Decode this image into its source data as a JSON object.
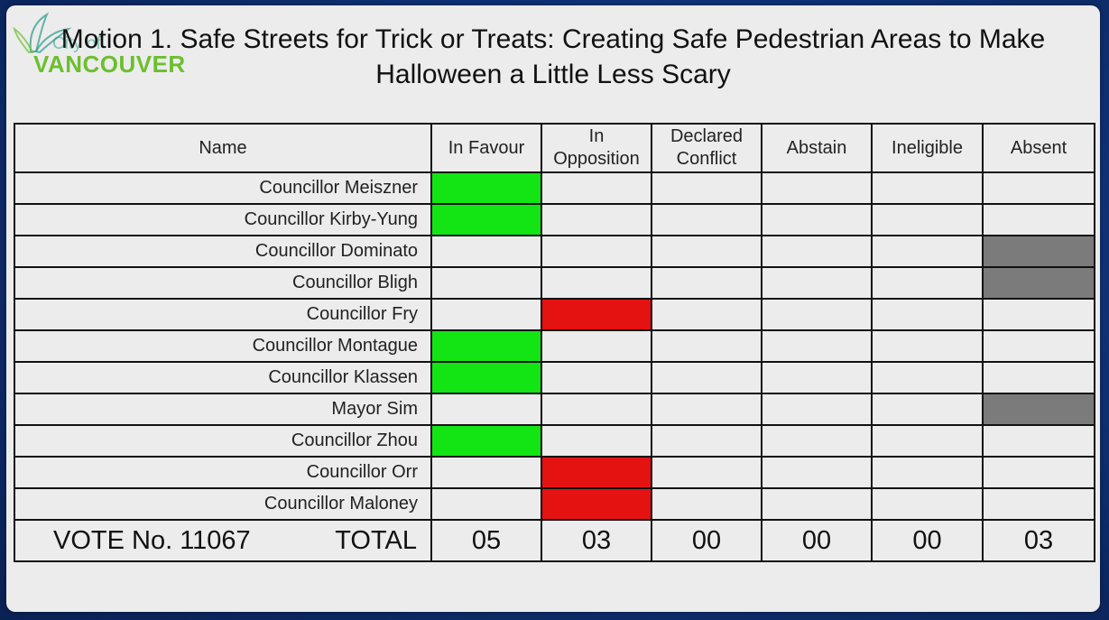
{
  "logo": {
    "city_text": "City of",
    "name_text": "VANCOUVER",
    "colors": {
      "leaf": "#2a9a8a",
      "name": "#6cbf2f"
    }
  },
  "title": "Motion 1. Safe Streets for Trick or Treats: Creating Safe Pedestrian Areas to Make Halloween a Little Less Scary",
  "columns": {
    "name": "Name",
    "in_favour": "In Favour",
    "in_opposition_line1": "In",
    "in_opposition_line2": "Opposition",
    "declared_conflict_line1": "Declared",
    "declared_conflict_line2": "Conflict",
    "abstain": "Abstain",
    "ineligible": "Ineligible",
    "absent": "Absent"
  },
  "rows": [
    {
      "name": "Councillor Meiszner",
      "vote": "in_favour"
    },
    {
      "name": "Councillor Kirby-Yung",
      "vote": "in_favour"
    },
    {
      "name": "Councillor Dominato",
      "vote": "absent"
    },
    {
      "name": "Councillor Bligh",
      "vote": "absent"
    },
    {
      "name": "Councillor Fry",
      "vote": "in_opposition"
    },
    {
      "name": "Councillor Montague",
      "vote": "in_favour"
    },
    {
      "name": "Councillor Klassen",
      "vote": "in_favour"
    },
    {
      "name": "Mayor Sim",
      "vote": "absent"
    },
    {
      "name": "Councillor Zhou",
      "vote": "in_favour"
    },
    {
      "name": "Councillor Orr",
      "vote": "in_opposition"
    },
    {
      "name": "Councillor Maloney",
      "vote": "in_opposition"
    }
  ],
  "vote_colors": {
    "in_favour": "#13e413",
    "in_opposition": "#e51212",
    "absent": "#7b7b7b"
  },
  "totals": {
    "vote_no": "VOTE No. 11067",
    "label": "TOTAL",
    "in_favour": "05",
    "in_opposition": "03",
    "declared_conflict": "00",
    "abstain": "00",
    "ineligible": "00",
    "absent": "03"
  }
}
